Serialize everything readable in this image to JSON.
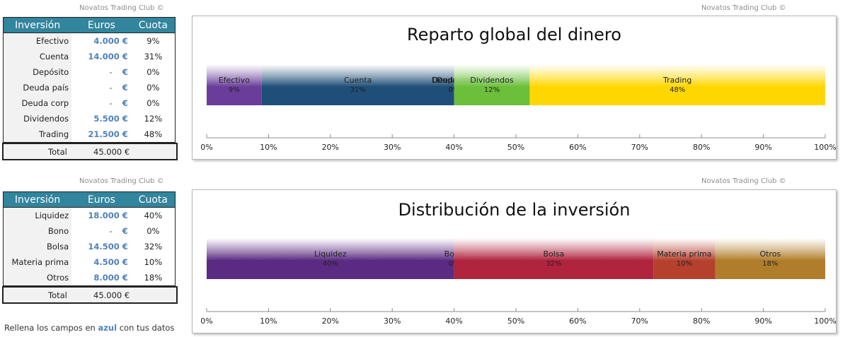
{
  "credit": "Novatos Trading Club ©",
  "table1": {
    "headers": [
      "Inversión",
      "Euros",
      "Cuota"
    ],
    "rows": [
      {
        "name": "Efectivo",
        "euros": "4.000 €",
        "pct": "9%"
      },
      {
        "name": "Cuenta",
        "euros": "14.000 €",
        "pct": "31%"
      },
      {
        "name": "Depósito",
        "euros": "- €",
        "pct": "0%"
      },
      {
        "name": "Deuda país",
        "euros": "- €",
        "pct": "0%"
      },
      {
        "name": "Deuda corp",
        "euros": "- €",
        "pct": "0%"
      },
      {
        "name": "Dividendos",
        "euros": "5.500 €",
        "pct": "12%"
      },
      {
        "name": "Trading",
        "euros": "21.500 €",
        "pct": "48%"
      }
    ],
    "total_label": "Total",
    "total_value": "45.000 €"
  },
  "table2": {
    "headers": [
      "Inversión",
      "Euros",
      "Cuota"
    ],
    "rows": [
      {
        "name": "Liquidez",
        "euros": "18.000 €",
        "pct": "40%"
      },
      {
        "name": "Bono",
        "euros": "- €",
        "pct": "0%"
      },
      {
        "name": "Bolsa",
        "euros": "14.500 €",
        "pct": "32%"
      },
      {
        "name": "Materia prima",
        "euros": "4.500 €",
        "pct": "10%"
      },
      {
        "name": "Otros",
        "euros": "8.000 €",
        "pct": "18%"
      }
    ],
    "total_label": "Total",
    "total_value": "45.000 €"
  },
  "note": {
    "before": "Rellena los campos en",
    "highlight": "azul",
    "after": "con tus datos"
  },
  "chart_data": [
    {
      "type": "bar",
      "orientation": "horizontal-stacked-100",
      "title": "Reparto global del dinero",
      "xlim": [
        0,
        100
      ],
      "ticks": [
        "0%",
        "10%",
        "20%",
        "30%",
        "40%",
        "50%",
        "60%",
        "70%",
        "80%",
        "90%",
        "100%"
      ],
      "grid": false,
      "series": [
        {
          "name": "Efectivo",
          "value": 8.89,
          "label": "9%",
          "color": "#6a3d9a"
        },
        {
          "name": "Cuenta",
          "value": 31.11,
          "label": "31%",
          "color": "#1f4e79"
        },
        {
          "name": "Depósito",
          "value": 0,
          "label": "0%",
          "color": "#7f7f7f"
        },
        {
          "name": "Deuda país",
          "value": 0,
          "label": "0%",
          "color": "#7f7f7f"
        },
        {
          "name": "Deuda corp",
          "value": 0,
          "label": "0%",
          "color": "#7f7f7f"
        },
        {
          "name": "Dividendos",
          "value": 12.22,
          "label": "12%",
          "color": "#6bbf3a"
        },
        {
          "name": "Trading",
          "value": 47.78,
          "label": "48%",
          "color": "#ffd700"
        }
      ]
    },
    {
      "type": "bar",
      "orientation": "horizontal-stacked-100",
      "title": "Distribución de la inversión",
      "xlim": [
        0,
        100
      ],
      "ticks": [
        "0%",
        "10%",
        "20%",
        "30%",
        "40%",
        "50%",
        "60%",
        "70%",
        "80%",
        "90%",
        "100%"
      ],
      "grid": false,
      "series": [
        {
          "name": "Liquidez",
          "value": 40,
          "label": "40%",
          "color": "#5b2a82"
        },
        {
          "name": "Bono",
          "value": 0,
          "label": "0%",
          "color": "#7f7f7f"
        },
        {
          "name": "Bolsa",
          "value": 32.22,
          "label": "32%",
          "color": "#b0243d"
        },
        {
          "name": "Materia prima",
          "value": 10,
          "label": "10%",
          "color": "#b5402e"
        },
        {
          "name": "Otros",
          "value": 17.78,
          "label": "18%",
          "color": "#b07d2a"
        }
      ]
    }
  ]
}
